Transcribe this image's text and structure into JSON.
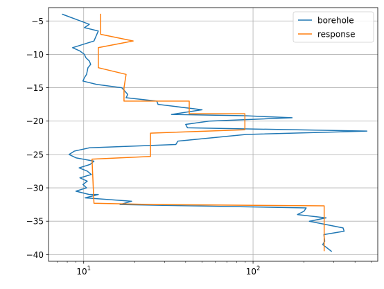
{
  "chart_data": {
    "type": "line",
    "xscale": "log",
    "xlim": [
      6.2,
      545
    ],
    "ylim": [
      -41,
      -3
    ],
    "grid": true,
    "legend_position": "top-right",
    "x_ticks": [
      {
        "value": 10,
        "base": "10",
        "exp": "1"
      },
      {
        "value": 100,
        "base": "10",
        "exp": "2"
      }
    ],
    "y_ticks": [
      {
        "value": -5,
        "label": "−5"
      },
      {
        "value": -10,
        "label": "−10"
      },
      {
        "value": -15,
        "label": "−15"
      },
      {
        "value": -20,
        "label": "−20"
      },
      {
        "value": -25,
        "label": "−25"
      },
      {
        "value": -30,
        "label": "−30"
      },
      {
        "value": -35,
        "label": "−35"
      },
      {
        "value": -40,
        "label": "−40"
      }
    ],
    "series": [
      {
        "name": "borehole",
        "color": "#1f77b4",
        "points": [
          [
            7.5,
            -4.0
          ],
          [
            10.8,
            -5.5
          ],
          [
            10.1,
            -6.0
          ],
          [
            12.2,
            -6.5
          ],
          [
            11.5,
            -8.0
          ],
          [
            8.6,
            -9.0
          ],
          [
            9.5,
            -9.5
          ],
          [
            10.1,
            -10.0
          ],
          [
            10.3,
            -10.5
          ],
          [
            10.8,
            -11.0
          ],
          [
            11.0,
            -11.5
          ],
          [
            10.6,
            -12.0
          ],
          [
            10.4,
            -13.0
          ],
          [
            10.1,
            -13.5
          ],
          [
            9.9,
            -14.0
          ],
          [
            11.9,
            -14.5
          ],
          [
            16.8,
            -15.0
          ],
          [
            18.2,
            -16.0
          ],
          [
            17.8,
            -16.5
          ],
          [
            27.0,
            -17.0
          ],
          [
            27.5,
            -17.5
          ],
          [
            50.0,
            -18.3
          ],
          [
            33.0,
            -19.0
          ],
          [
            90.0,
            -19.2
          ],
          [
            170.0,
            -19.5
          ],
          [
            55.0,
            -20.0
          ],
          [
            40.0,
            -20.5
          ],
          [
            41.0,
            -21.0
          ],
          [
            470.0,
            -21.5
          ],
          [
            91.0,
            -22.0
          ],
          [
            36.0,
            -23.0
          ],
          [
            35.0,
            -23.5
          ],
          [
            10.8,
            -24.0
          ],
          [
            8.8,
            -24.5
          ],
          [
            8.2,
            -25.0
          ],
          [
            9.0,
            -25.5
          ],
          [
            11.5,
            -26.0
          ],
          [
            10.9,
            -26.5
          ],
          [
            9.4,
            -27.0
          ],
          [
            10.5,
            -27.5
          ],
          [
            11.1,
            -28.0
          ],
          [
            9.5,
            -28.5
          ],
          [
            10.5,
            -29.0
          ],
          [
            9.9,
            -29.5
          ],
          [
            10.4,
            -30.0
          ],
          [
            9.0,
            -30.5
          ],
          [
            10.8,
            -31.0
          ],
          [
            12.2,
            -31.0
          ],
          [
            10.2,
            -31.5
          ],
          [
            19.2,
            -32.0
          ],
          [
            16.4,
            -32.5
          ],
          [
            206.0,
            -33.0
          ],
          [
            200.0,
            -33.5
          ],
          [
            183.0,
            -34.0
          ],
          [
            270.0,
            -34.5
          ],
          [
            215.0,
            -35.0
          ],
          [
            340.0,
            -36.0
          ],
          [
            345.0,
            -36.5
          ],
          [
            262.0,
            -37.0
          ],
          [
            265.0,
            -38.0
          ],
          [
            258.0,
            -38.5
          ],
          [
            290.0,
            -39.5
          ]
        ]
      },
      {
        "name": "response",
        "color": "#ff7f0e",
        "points": [
          [
            12.6,
            -4.0
          ],
          [
            12.6,
            -7.0
          ],
          [
            19.6,
            -8.0
          ],
          [
            12.2,
            -9.0
          ],
          [
            12.2,
            -12.0
          ],
          [
            17.8,
            -13.0
          ],
          [
            17.3,
            -15.0
          ],
          [
            17.3,
            -17.0
          ],
          [
            42.0,
            -17.0
          ],
          [
            42.0,
            -18.9
          ],
          [
            89.5,
            -18.9
          ],
          [
            89.5,
            -21.3
          ],
          [
            24.8,
            -21.8
          ],
          [
            24.8,
            -25.3
          ],
          [
            11.2,
            -25.7
          ],
          [
            11.5,
            -32.3
          ],
          [
            26.0,
            -32.5
          ],
          [
            263.0,
            -32.7
          ],
          [
            263.0,
            -39.4
          ]
        ]
      }
    ]
  }
}
